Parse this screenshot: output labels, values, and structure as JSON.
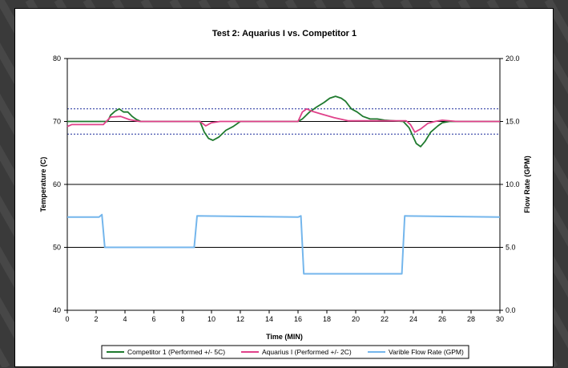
{
  "chart_data": {
    "type": "line",
    "title": "Test 2: Aquarius I vs. Competitor 1",
    "xlabel": "Time (MIN)",
    "ylabel": "Temperature (C)",
    "y2label": "Flow Rate (GPM)",
    "xlim": [
      0,
      30
    ],
    "ylim": [
      40,
      80
    ],
    "y2lim": [
      0.0,
      20.0
    ],
    "x_ticks": [
      "0",
      "2",
      "4",
      "6",
      "8",
      "10",
      "12",
      "14",
      "16",
      "18",
      "20",
      "22",
      "24",
      "26",
      "28",
      "30"
    ],
    "y_ticks": [
      "40",
      "50",
      "60",
      "70",
      "80"
    ],
    "y2_ticks": [
      "0.0",
      "5.0",
      "10.0",
      "15.0",
      "20.0"
    ],
    "grid": "horizontal major",
    "tolerance_lines": [
      68,
      72
    ],
    "legend_position": "bottom",
    "series": [
      {
        "name": "Competitor 1 (Performed +/- 5C)",
        "color": "#1f7a2e",
        "axis": "left",
        "points": [
          [
            0,
            70
          ],
          [
            2.8,
            70
          ],
          [
            3.0,
            71
          ],
          [
            3.3,
            71.6
          ],
          [
            3.6,
            72
          ],
          [
            3.9,
            71.5
          ],
          [
            4.2,
            71.5
          ],
          [
            4.5,
            70.8
          ],
          [
            4.8,
            70.3
          ],
          [
            5.1,
            70
          ],
          [
            8,
            70
          ],
          [
            9.2,
            70
          ],
          [
            9.5,
            68.3
          ],
          [
            9.8,
            67.3
          ],
          [
            10.1,
            67
          ],
          [
            10.5,
            67.5
          ],
          [
            11,
            68.6
          ],
          [
            11.5,
            69.2
          ],
          [
            12,
            70
          ],
          [
            16,
            70
          ],
          [
            16.3,
            70.4
          ],
          [
            16.8,
            71.5
          ],
          [
            17.3,
            72.3
          ],
          [
            17.8,
            73
          ],
          [
            18.2,
            73.7
          ],
          [
            18.6,
            74
          ],
          [
            19,
            73.7
          ],
          [
            19.3,
            73.2
          ],
          [
            19.7,
            72
          ],
          [
            20.1,
            71.5
          ],
          [
            20.5,
            70.8
          ],
          [
            21,
            70.4
          ],
          [
            21.5,
            70.4
          ],
          [
            22,
            70.2
          ],
          [
            23.3,
            70
          ],
          [
            23.7,
            69
          ],
          [
            24.2,
            66.5
          ],
          [
            24.5,
            66
          ],
          [
            24.8,
            66.8
          ],
          [
            25.2,
            68.3
          ],
          [
            25.7,
            69.3
          ],
          [
            26,
            69.8
          ],
          [
            26.5,
            70
          ],
          [
            30,
            70
          ]
        ]
      },
      {
        "name": "Aquarius I (Performed +/- 2C)",
        "color": "#e0418a",
        "axis": "left",
        "points": [
          [
            0,
            69.2
          ],
          [
            0.3,
            69.5
          ],
          [
            2.5,
            69.5
          ],
          [
            3,
            70.7
          ],
          [
            3.7,
            70.8
          ],
          [
            4.3,
            70.3
          ],
          [
            5,
            70
          ],
          [
            9.2,
            70
          ],
          [
            9.6,
            69.3
          ],
          [
            10,
            69.8
          ],
          [
            10.6,
            70
          ],
          [
            16,
            70
          ],
          [
            16.3,
            71.5
          ],
          [
            16.6,
            72
          ],
          [
            17,
            71.6
          ],
          [
            17.6,
            71.2
          ],
          [
            18.5,
            70.6
          ],
          [
            19.5,
            70.1
          ],
          [
            21.5,
            70.1
          ],
          [
            23.5,
            70.1
          ],
          [
            23.8,
            69.5
          ],
          [
            24.1,
            68.3
          ],
          [
            24.5,
            68.8
          ],
          [
            25,
            69.7
          ],
          [
            25.5,
            70
          ],
          [
            26,
            70.2
          ],
          [
            27,
            70
          ],
          [
            30,
            70
          ]
        ]
      },
      {
        "name": "Varible Flow Rate (GPM)",
        "color": "#74b6ec",
        "axis": "right",
        "points": [
          [
            0,
            7.4
          ],
          [
            2.2,
            7.4
          ],
          [
            2.4,
            7.6
          ],
          [
            2.6,
            5.0
          ],
          [
            8.8,
            5.0
          ],
          [
            9,
            7.5
          ],
          [
            16,
            7.4
          ],
          [
            16.2,
            7.5
          ],
          [
            16.4,
            2.9
          ],
          [
            23.2,
            2.9
          ],
          [
            23.4,
            7.5
          ],
          [
            30,
            7.4
          ]
        ]
      }
    ]
  }
}
